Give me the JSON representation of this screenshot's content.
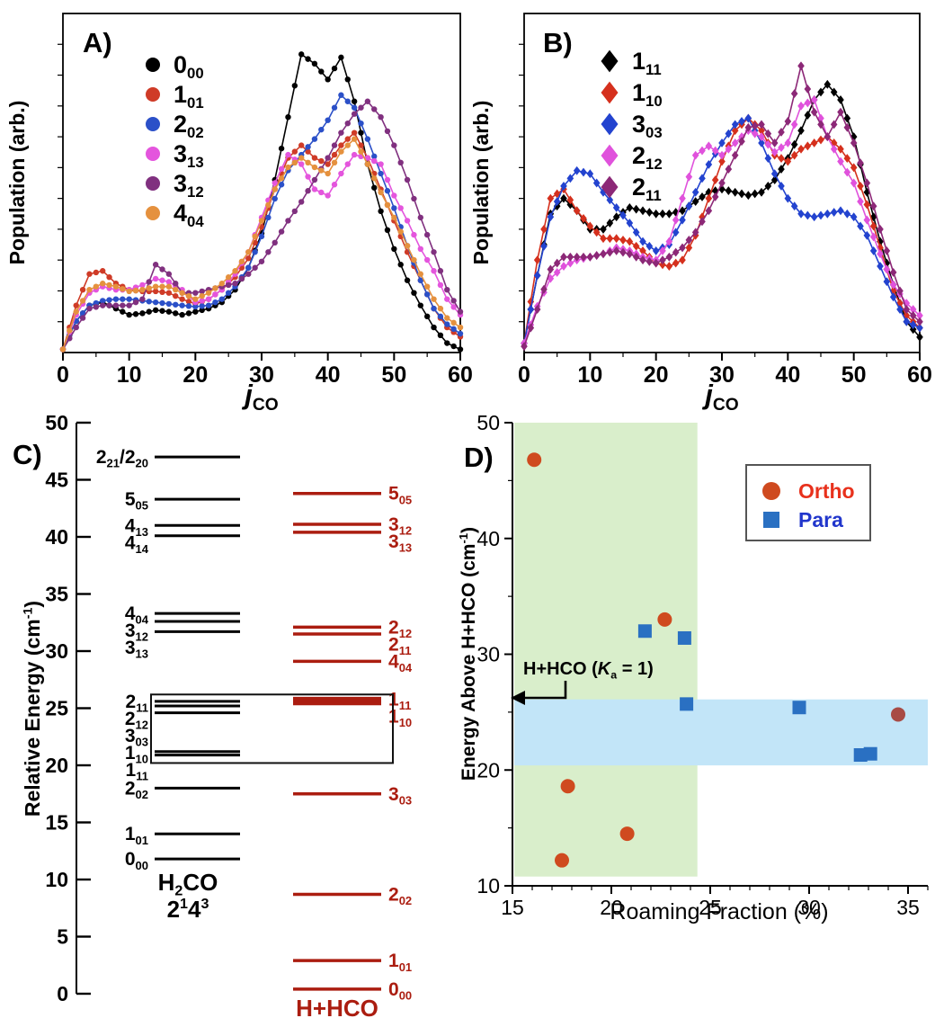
{
  "panels": {
    "a": {
      "tag": "A)"
    },
    "b": {
      "tag": "B)"
    },
    "c": {
      "tag": "C)"
    },
    "d": {
      "tag": "D)"
    }
  },
  "chart_data": [
    {
      "panel": "A",
      "type": "line",
      "xlabel": "*j*_{CO}",
      "ylabel": "Population (arb.)",
      "xlim": [
        0,
        60
      ],
      "xticks": [
        0,
        10,
        20,
        30,
        40,
        50,
        60
      ],
      "ylim": [
        0,
        1.08
      ],
      "legend_position": "upper-left",
      "x": [
        0,
        2,
        4,
        6,
        8,
        10,
        12,
        14,
        16,
        18,
        20,
        22,
        24,
        26,
        28,
        30,
        32,
        34,
        36,
        38,
        40,
        42,
        44,
        46,
        48,
        50,
        52,
        54,
        56,
        58,
        60
      ],
      "series": [
        {
          "name": "0_00",
          "label": "0_{00}",
          "color": "#000000",
          "marker": "circle",
          "values": [
            0.01,
            0.1,
            0.15,
            0.16,
            0.14,
            0.12,
            0.125,
            0.135,
            0.13,
            0.12,
            0.13,
            0.14,
            0.16,
            0.2,
            0.27,
            0.38,
            0.55,
            0.75,
            0.95,
            0.92,
            0.87,
            0.94,
            0.8,
            0.6,
            0.45,
            0.33,
            0.23,
            0.15,
            0.08,
            0.03,
            0.01
          ]
        },
        {
          "name": "1_01",
          "label": "1_{01}",
          "color": "#cf3b27",
          "marker": "circle",
          "values": [
            0.01,
            0.15,
            0.25,
            0.26,
            0.22,
            0.2,
            0.195,
            0.195,
            0.19,
            0.17,
            0.155,
            0.17,
            0.2,
            0.24,
            0.3,
            0.4,
            0.52,
            0.62,
            0.66,
            0.62,
            0.6,
            0.66,
            0.7,
            0.62,
            0.52,
            0.42,
            0.32,
            0.23,
            0.14,
            0.08,
            0.05
          ]
        },
        {
          "name": "2_02",
          "label": "2_{02}",
          "color": "#2b50c8",
          "marker": "circle",
          "values": [
            0.01,
            0.1,
            0.15,
            0.165,
            0.17,
            0.17,
            0.165,
            0.16,
            0.155,
            0.15,
            0.146,
            0.15,
            0.17,
            0.21,
            0.27,
            0.37,
            0.49,
            0.58,
            0.63,
            0.68,
            0.74,
            0.82,
            0.78,
            0.68,
            0.57,
            0.46,
            0.34,
            0.23,
            0.14,
            0.09,
            0.06
          ]
        },
        {
          "name": "3_13",
          "label": "3_{13}",
          "color": "#e455dd",
          "marker": "circle",
          "values": [
            0.01,
            0.12,
            0.19,
            0.21,
            0.2,
            0.2,
            0.215,
            0.235,
            0.225,
            0.2,
            0.16,
            0.17,
            0.2,
            0.25,
            0.32,
            0.43,
            0.54,
            0.63,
            0.6,
            0.52,
            0.5,
            0.57,
            0.63,
            0.62,
            0.6,
            0.5,
            0.42,
            0.33,
            0.26,
            0.17,
            0.12
          ]
        },
        {
          "name": "3_12",
          "label": "3_{12}",
          "color": "#80307f",
          "marker": "circle",
          "values": [
            0.01,
            0.08,
            0.14,
            0.15,
            0.15,
            0.15,
            0.17,
            0.28,
            0.25,
            0.19,
            0.19,
            0.2,
            0.21,
            0.22,
            0.25,
            0.29,
            0.35,
            0.42,
            0.48,
            0.55,
            0.62,
            0.7,
            0.76,
            0.8,
            0.75,
            0.66,
            0.55,
            0.43,
            0.32,
            0.2,
            0.13
          ]
        },
        {
          "name": "4_04",
          "label": "4_{04}",
          "color": "#e5913e",
          "marker": "circle",
          "values": [
            0.01,
            0.13,
            0.2,
            0.22,
            0.21,
            0.195,
            0.2,
            0.21,
            0.21,
            0.19,
            0.17,
            0.19,
            0.22,
            0.26,
            0.32,
            0.42,
            0.52,
            0.59,
            0.62,
            0.59,
            0.57,
            0.64,
            0.68,
            0.6,
            0.51,
            0.43,
            0.34,
            0.25,
            0.17,
            0.11,
            0.08
          ]
        }
      ]
    },
    {
      "panel": "B",
      "type": "line",
      "xlabel": "*j*_{CO}",
      "ylabel": "Population (arb.)",
      "xlim": [
        0,
        60
      ],
      "xticks": [
        0,
        10,
        20,
        30,
        40,
        50,
        60
      ],
      "ylim": [
        0,
        1.1
      ],
      "legend_position": "upper-left",
      "x": [
        0,
        2,
        4,
        6,
        8,
        10,
        12,
        14,
        16,
        18,
        20,
        22,
        24,
        26,
        28,
        30,
        32,
        34,
        36,
        38,
        40,
        42,
        44,
        46,
        48,
        50,
        52,
        54,
        56,
        58,
        60
      ],
      "series": [
        {
          "name": "1_11",
          "label": "1_{11}",
          "color": "#000000",
          "marker": "diamond",
          "values": [
            0.03,
            0.25,
            0.45,
            0.5,
            0.46,
            0.4,
            0.4,
            0.44,
            0.47,
            0.46,
            0.45,
            0.45,
            0.46,
            0.49,
            0.52,
            0.53,
            0.52,
            0.51,
            0.52,
            0.56,
            0.63,
            0.72,
            0.82,
            0.87,
            0.82,
            0.7,
            0.52,
            0.36,
            0.22,
            0.1,
            0.05
          ]
        },
        {
          "name": "1_10",
          "label": "1_{10}",
          "color": "#d5301d",
          "marker": "diamond",
          "values": [
            0.03,
            0.3,
            0.5,
            0.53,
            0.46,
            0.41,
            0.37,
            0.37,
            0.36,
            0.33,
            0.29,
            0.28,
            0.3,
            0.38,
            0.5,
            0.62,
            0.72,
            0.76,
            0.72,
            0.64,
            0.62,
            0.66,
            0.68,
            0.7,
            0.66,
            0.6,
            0.48,
            0.34,
            0.2,
            0.12,
            0.08
          ]
        },
        {
          "name": "3_03",
          "label": "3_{03}",
          "color": "#2343cf",
          "marker": "diamond",
          "values": [
            0.03,
            0.25,
            0.44,
            0.54,
            0.59,
            0.58,
            0.52,
            0.47,
            0.42,
            0.36,
            0.33,
            0.35,
            0.43,
            0.52,
            0.61,
            0.68,
            0.74,
            0.76,
            0.68,
            0.58,
            0.5,
            0.45,
            0.44,
            0.45,
            0.46,
            0.44,
            0.38,
            0.28,
            0.18,
            0.1,
            0.08
          ]
        },
        {
          "name": "2_12",
          "label": "2_{12}",
          "color": "#e052dc",
          "marker": "diamond",
          "values": [
            0.03,
            0.15,
            0.24,
            0.28,
            0.3,
            0.31,
            0.32,
            0.34,
            0.33,
            0.31,
            0.3,
            0.36,
            0.5,
            0.64,
            0.67,
            0.64,
            0.68,
            0.72,
            0.7,
            0.65,
            0.68,
            0.8,
            0.82,
            0.7,
            0.62,
            0.55,
            0.43,
            0.32,
            0.22,
            0.16,
            0.12
          ]
        },
        {
          "name": "2_11",
          "label": "2_{11}",
          "color": "#8c2877",
          "marker": "diamond",
          "values": [
            0.02,
            0.14,
            0.27,
            0.31,
            0.31,
            0.31,
            0.32,
            0.33,
            0.32,
            0.3,
            0.29,
            0.31,
            0.34,
            0.39,
            0.46,
            0.55,
            0.64,
            0.73,
            0.74,
            0.68,
            0.75,
            0.93,
            0.78,
            0.7,
            0.78,
            0.68,
            0.55,
            0.4,
            0.26,
            0.14,
            0.1
          ]
        }
      ]
    },
    {
      "panel": "C",
      "type": "energy-levels",
      "ylabel": "Relative Energy (cm^{-1})",
      "ylim": [
        0,
        50
      ],
      "yticks": [
        0,
        5,
        10,
        15,
        20,
        25,
        30,
        35,
        40,
        45,
        50
      ],
      "left_system": {
        "label_line1": "H_{2}CO",
        "label_line2": "2^{1}4^{3}",
        "color": "#000000",
        "levels": [
          {
            "label": "2_{21}/2_{20}",
            "energy": 47.0
          },
          {
            "label": "5_{05}",
            "energy": 43.3
          },
          {
            "label": "4_{13}",
            "energy": 41.0
          },
          {
            "label": "4_{14}",
            "energy": 40.1
          },
          {
            "label": "4_{04}",
            "energy": 33.3
          },
          {
            "label": "3_{12}",
            "energy": 32.6
          },
          {
            "label": "3_{13}",
            "energy": 31.7
          },
          {
            "label": "2_{11}",
            "energy": 25.6
          },
          {
            "label": "2_{12}",
            "energy": 25.2
          },
          {
            "label": "3_{03}",
            "energy": 24.6
          },
          {
            "label": "1_{10}",
            "energy": 21.2
          },
          {
            "label": "1_{11}",
            "energy": 20.9
          },
          {
            "label": "2_{02}",
            "energy": 18.0
          },
          {
            "label": "1_{01}",
            "energy": 14.0
          },
          {
            "label": "0_{00}",
            "energy": 11.8
          }
        ]
      },
      "right_system": {
        "label": "H+HCO",
        "color": "#ab1d10",
        "levels": [
          {
            "label": "5_{05}",
            "energy": 43.8
          },
          {
            "label": "3_{12}",
            "energy": 41.1
          },
          {
            "label": "3_{13}",
            "energy": 40.4
          },
          {
            "label": "2_{12}",
            "energy": 32.1
          },
          {
            "label": "2_{11}",
            "energy": 31.5
          },
          {
            "label": "4_{04}",
            "energy": 29.1
          },
          {
            "label": "1_{11}",
            "energy": 25.8,
            "thick": true
          },
          {
            "label": "1_{10}",
            "energy": 25.45,
            "thick": true
          },
          {
            "label": "3_{03}",
            "energy": 17.5
          },
          {
            "label": "2_{02}",
            "energy": 8.7
          },
          {
            "label": "1_{01}",
            "energy": 2.9
          },
          {
            "label": "0_{00}",
            "energy": 0.4
          }
        ]
      },
      "highlight_box": {
        "energy_top": 26.2,
        "energy_bottom": 20.2
      }
    },
    {
      "panel": "D",
      "type": "scatter",
      "xlabel": "Roaming Fraction (%)",
      "ylabel": "Energy Above H+HCO (cm^{-1})",
      "xlim": [
        15,
        36
      ],
      "ylim": [
        10,
        50
      ],
      "xticks": [
        15,
        20,
        25,
        30,
        35
      ],
      "yticks": [
        10,
        20,
        30,
        40,
        50
      ],
      "regions": [
        {
          "name": "ka1-green-region",
          "x0": 15.05,
          "x1": 24.35,
          "y0": 10.8,
          "y1": 50,
          "color": "#d9eecb"
        },
        {
          "name": "blue-band-region",
          "x0": 15.05,
          "x1": 36,
          "y0": 20.4,
          "y1": 26.1,
          "color": "#c2e5f8"
        }
      ],
      "annotation": {
        "text": "H+HCO (*K*_{a} = 1)"
      },
      "series": [
        {
          "name": "Ortho",
          "label": "Ortho",
          "marker": "circle",
          "color": "#cf4a1f",
          "text_color": "#e8311c",
          "points": [
            [
              16.1,
              46.8
            ],
            [
              22.7,
              33.0
            ],
            [
              17.8,
              18.6
            ],
            [
              20.8,
              14.5
            ],
            [
              17.5,
              12.2
            ],
            [
              34.5,
              24.8
            ]
          ],
          "point_colors": [
            null,
            null,
            null,
            null,
            null,
            "#a84b45"
          ]
        },
        {
          "name": "Para",
          "label": "Para",
          "marker": "square",
          "color": "#2a70c2",
          "text_color": "#2136cc",
          "points": [
            [
              21.7,
              32.0
            ],
            [
              23.7,
              31.4
            ],
            [
              23.8,
              25.7
            ],
            [
              29.5,
              25.4
            ],
            [
              32.6,
              21.3
            ],
            [
              33.1,
              21.4
            ]
          ],
          "point_colors": [
            null,
            null,
            null,
            null,
            null,
            null
          ]
        }
      ]
    }
  ]
}
